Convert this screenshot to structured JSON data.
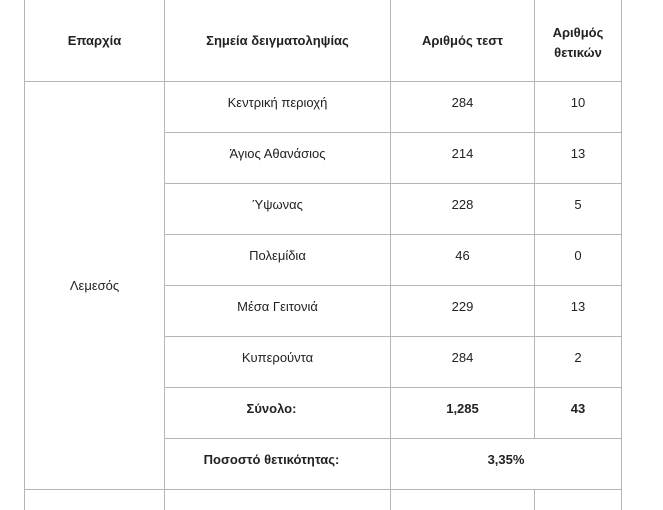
{
  "headers": {
    "province": "Επαρχία",
    "site": "Σημεία δειγματοληψίας",
    "tests": "Αριθμός τεστ",
    "positives_line1": "Αριθμός",
    "positives_line2": "θετικών"
  },
  "province": "Λεμεσός",
  "rows": [
    {
      "site": "Κεντρική περιοχή",
      "tests": "284",
      "positives": "10"
    },
    {
      "site": "Άγιος Αθανάσιος",
      "tests": "214",
      "positives": "13"
    },
    {
      "site": "Ύψωνας",
      "tests": "228",
      "positives": "5"
    },
    {
      "site": "Πολεμίδια",
      "tests": "46",
      "positives": "0"
    },
    {
      "site": "Μέσα Γειτονιά",
      "tests": "229",
      "positives": "13"
    },
    {
      "site": "Κυπερούντα",
      "tests": "284",
      "positives": "2"
    }
  ],
  "total": {
    "label": "Σύνολο:",
    "tests": "1,285",
    "positives": "43"
  },
  "positivity": {
    "label": "Ποσοστό θετικότητας:",
    "value": "3,35%"
  }
}
